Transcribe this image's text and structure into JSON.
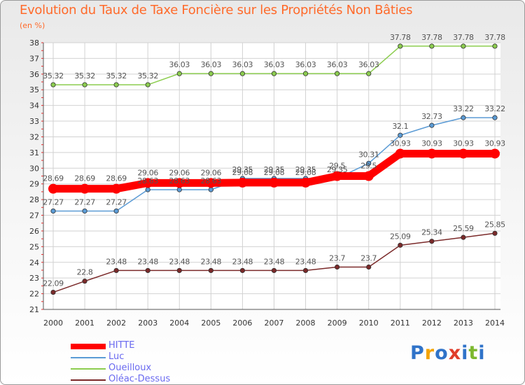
{
  "title": "Evolution du Taux de Taxe Foncière sur les Propriétés Non Bâties",
  "unit": "(en %)",
  "brand": {
    "text": "Proxiti",
    "colors": [
      "#2f73c9",
      "#f4a300",
      "#2f73c9",
      "#e03c2a",
      "#2f73c9",
      "#7cb82f",
      "#2f73c9"
    ]
  },
  "chart_data": {
    "type": "line",
    "title": "Evolution du Taux de Taxe Foncière sur les Propriétés Non Bâties",
    "ylabel": "(en %)",
    "xlabel": "",
    "x": [
      2000,
      2001,
      2002,
      2003,
      2004,
      2005,
      2006,
      2007,
      2008,
      2009,
      2010,
      2011,
      2012,
      2013,
      2014
    ],
    "ylim": [
      21,
      38
    ],
    "yticks": [
      21,
      22,
      23,
      24,
      25,
      26,
      27,
      28,
      29,
      30,
      31,
      32,
      33,
      34,
      35,
      36,
      37,
      38
    ],
    "grid": true,
    "legend_position": "bottom-left",
    "series": [
      {
        "name": "HITTE",
        "color": "#ff0000",
        "bold": true,
        "values": [
          28.69,
          28.69,
          28.69,
          29.06,
          29.06,
          29.06,
          29.08,
          29.08,
          29.08,
          29.5,
          29.5,
          30.93,
          30.93,
          30.93,
          30.93
        ],
        "labels": [
          "28.69",
          "28.69",
          "28.69",
          "29.06",
          "29.06",
          "29.06",
          "29.08",
          "29.08",
          "29.08",
          "29.5",
          "29.5",
          "30.93",
          "30.93",
          "30.93",
          "30.93"
        ]
      },
      {
        "name": "Luc",
        "color": "#5b9bd5",
        "values": [
          27.27,
          27.27,
          27.27,
          28.63,
          28.63,
          28.63,
          29.35,
          29.35,
          29.35,
          29.35,
          30.31,
          32.1,
          32.73,
          33.22,
          33.22
        ],
        "labels": [
          "27.27",
          "27.27",
          "27.27",
          "28.63",
          "28.63",
          "28.63",
          "29.35",
          "29.35",
          "29.35",
          "29.35",
          "30.31",
          "32.1",
          "32.73",
          "33.22",
          "33.22"
        ]
      },
      {
        "name": "Oueilloux",
        "color": "#8ccd4f",
        "values": [
          35.32,
          35.32,
          35.32,
          35.32,
          36.03,
          36.03,
          36.03,
          36.03,
          36.03,
          36.03,
          36.03,
          37.78,
          37.78,
          37.78,
          37.78
        ],
        "labels": [
          "35.32",
          "35.32",
          "35.32",
          "35.32",
          "36.03",
          "36.03",
          "36.03",
          "36.03",
          "36.03",
          "36.03",
          "36.03",
          "37.78",
          "37.78",
          "37.78",
          "37.78"
        ]
      },
      {
        "name": "Oléac-Dessus",
        "color": "#7b2a2a",
        "values": [
          22.09,
          22.8,
          23.48,
          23.48,
          23.48,
          23.48,
          23.48,
          23.48,
          23.48,
          23.7,
          23.7,
          25.09,
          25.34,
          25.59,
          25.85
        ],
        "labels": [
          "22.09",
          "22.8",
          "23.48",
          "23.48",
          "23.48",
          "23.48",
          "23.48",
          "23.48",
          "23.48",
          "23.7",
          "23.7",
          "25.09",
          "25.34",
          "25.59",
          "25.85"
        ]
      }
    ]
  }
}
